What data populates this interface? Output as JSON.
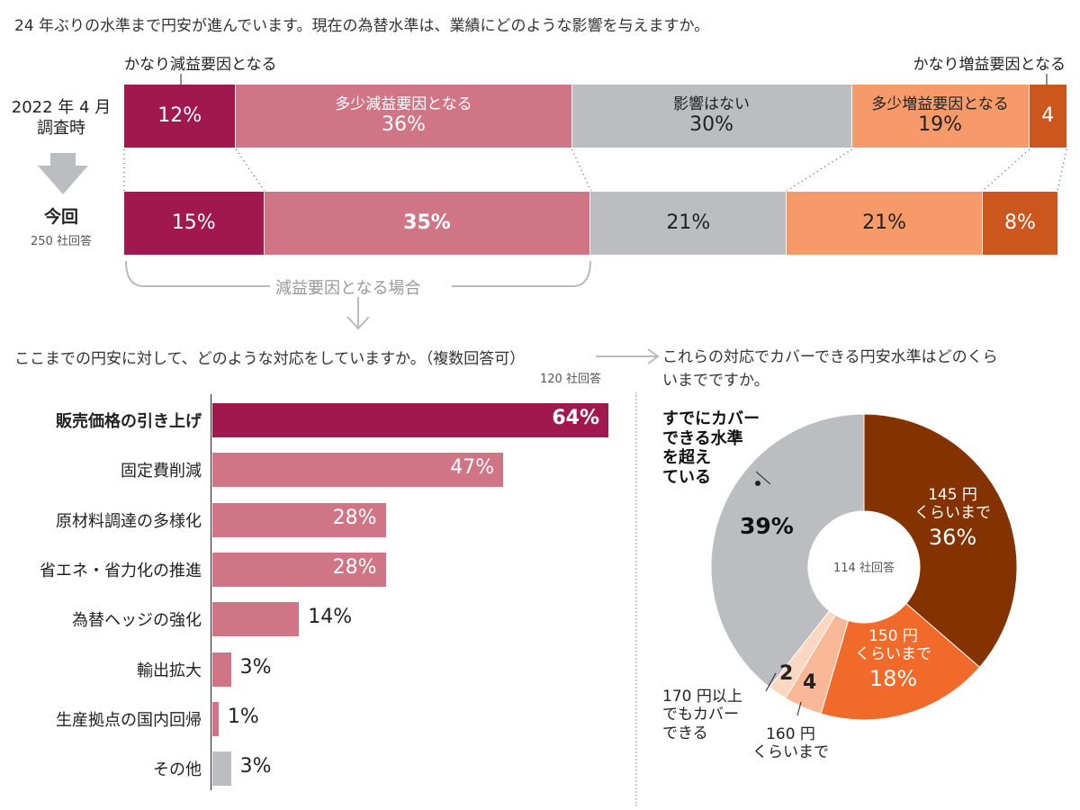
{
  "title": "24 年ぶりの水準まで円安が進んでいます。現在の為替水準は、業績にどのような影響を与えますか。",
  "colors": {
    "large_decrease": "#a0184e",
    "small_decrease": "#d07586",
    "no_effect": "#bcbdc0",
    "small_increase": "#f79a69",
    "large_increase": "#cb561e",
    "pie_145": "#843200",
    "pie_150": "#f16a2a",
    "pie_160": "#f8b898",
    "pie_170": "#fbd6c0",
    "pie_over": "#bcbdc0"
  },
  "top": {
    "callout_left": "かなり減益要因となる",
    "callout_right": "かなり増益要因となる",
    "row1_label_line1": "2022 年 4 月",
    "row1_label_line2": "調査時",
    "row2_label": "今回",
    "row2_sub": "250 社回答",
    "bracket_label": "減益要因となる場合"
  },
  "chart_data": [
    {
      "type": "bar",
      "orientation": "horizontal-stacked",
      "title": "現在の為替水準は、業績にどのような影響を与えますか。",
      "categories": [
        "かなり減益要因となる",
        "多少減益要因となる",
        "影響はない",
        "多少増益要因となる",
        "かなり増益要因となる"
      ],
      "series": [
        {
          "name": "2022 年 4 月調査時",
          "values": [
            12,
            36,
            30,
            19,
            4
          ],
          "value_labels": [
            "12%",
            "36%",
            "30%",
            "19%",
            "4"
          ],
          "segment_labels": [
            "",
            "多少減益要因となる",
            "影響はない",
            "多少増益要因となる",
            ""
          ]
        },
        {
          "name": "今回",
          "values": [
            15,
            35,
            21,
            21,
            8
          ],
          "value_labels": [
            "15%",
            "35%",
            "21%",
            "21%",
            "8%"
          ]
        }
      ],
      "unit": "%"
    },
    {
      "type": "bar",
      "orientation": "horizontal",
      "title": "ここまでの円安に対して、どのような対応をしていますか。（複数回答可）",
      "note": "120 社回答",
      "categories": [
        "販売価格の引き上げ",
        "固定費削減",
        "原材料調達の多様化",
        "省エネ・省力化の推進",
        "為替ヘッジの強化",
        "輸出拡大",
        "生産拠点の国内回帰",
        "その他"
      ],
      "values": [
        64,
        47,
        28,
        28,
        14,
        3,
        1,
        3
      ],
      "value_labels": [
        "64%",
        "47%",
        "28%",
        "28%",
        "14%",
        "3%",
        "1%",
        "3%"
      ],
      "unit": "%"
    },
    {
      "type": "pie",
      "donut": true,
      "title": "これらの対応でカバーできる円安水準はどのくらいまでですか。",
      "center_label": "114 社回答",
      "slices": [
        {
          "name": "145 円くらいまで",
          "line1": "145 円",
          "line2": "くらいまで",
          "value": 36,
          "value_label": "36%"
        },
        {
          "name": "150 円くらいまで",
          "line1": "150 円",
          "line2": "くらいまで",
          "value": 18,
          "value_label": "18%"
        },
        {
          "name": "160 円くらいまで",
          "line1": "160 円",
          "line2": "くらいまで",
          "value": 4,
          "value_label": "4"
        },
        {
          "name": "170 円以上でもカバーできる",
          "line1": "170 円以上",
          "line2": "でもカバー",
          "line3": "できる",
          "value": 2,
          "value_label": "2"
        },
        {
          "name": "すでにカバーできる水準を超えている",
          "line1": "すでにカバー",
          "line2": "できる水準",
          "line3": "を超え",
          "line4": "ている",
          "value": 39,
          "value_label": "39%"
        }
      ],
      "unit": "%"
    }
  ],
  "middle": {
    "question_left": "ここまでの円安に対して、どのような対応をしていますか。（複数回答可）",
    "note_left": "120 社回答",
    "question_right_line1": "これらの対応でカバーできる円安水準はどのくら",
    "question_right_line2": "いまでですか。"
  }
}
